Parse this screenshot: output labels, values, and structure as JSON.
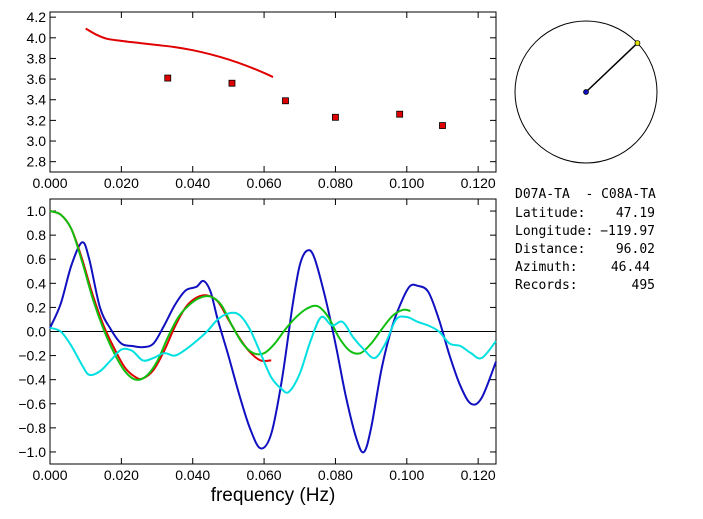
{
  "station_pair": "D07A-TA  - C08A-TA",
  "info": [
    {
      "label": "Latitude:",
      "value": "47.19"
    },
    {
      "label": "Longitude:",
      "value": "-119.97"
    },
    {
      "label": "Distance:",
      "value": "96.02"
    },
    {
      "label": "Azimuth:",
      "value": "46.44"
    },
    {
      "label": "Records:",
      "value": "495"
    }
  ],
  "azimuth_deg": 46.44,
  "chart_data": [
    {
      "type": "scatter",
      "xlim": [
        0.0,
        0.125
      ],
      "ylim": [
        2.7,
        4.25
      ],
      "x_ticks": [
        "0.000",
        "0.020",
        "0.040",
        "0.060",
        "0.080",
        "0.100",
        "0.120"
      ],
      "y_ticks": [
        "2.8",
        "3.0",
        "3.2",
        "3.4",
        "3.6",
        "3.8",
        "4.0",
        "4.2"
      ],
      "series": [
        {
          "kind": "line",
          "color": "#e00000",
          "x": [
            0.01,
            0.013,
            0.016,
            0.02,
            0.025,
            0.03,
            0.035,
            0.04,
            0.045,
            0.05,
            0.055,
            0.06,
            0.0625
          ],
          "y": [
            4.09,
            4.03,
            3.99,
            3.97,
            3.95,
            3.93,
            3.91,
            3.88,
            3.84,
            3.79,
            3.73,
            3.66,
            3.62
          ]
        },
        {
          "kind": "points",
          "color": "#e00000",
          "x": [
            0.033,
            0.051,
            0.066,
            0.08,
            0.098,
            0.11
          ],
          "y": [
            3.61,
            3.56,
            3.39,
            3.23,
            3.26,
            3.15
          ]
        }
      ]
    },
    {
      "type": "line",
      "xlabel": "frequency  (Hz)",
      "xlim": [
        0.0,
        0.125
      ],
      "ylim": [
        -1.1,
        1.1
      ],
      "x_ticks": [
        "0.000",
        "0.020",
        "0.040",
        "0.060",
        "0.080",
        "0.100",
        "0.120"
      ],
      "y_ticks": [
        "-1.0",
        "-0.8",
        "-0.6",
        "-0.4",
        "-0.2",
        "0.0",
        "0.2",
        "0.4",
        "0.6",
        "0.8",
        "1.0"
      ],
      "zero_line": true,
      "series": [
        {
          "color": "#1010c0",
          "x": [
            0,
            0.003,
            0.006,
            0.009,
            0.011,
            0.014,
            0.017,
            0.02,
            0.023,
            0.026,
            0.029,
            0.032,
            0.035,
            0.038,
            0.041,
            0.043,
            0.045,
            0.047,
            0.05,
            0.053,
            0.056,
            0.059,
            0.062,
            0.065,
            0.068,
            0.07,
            0.072,
            0.074,
            0.077,
            0.08,
            0.083,
            0.086,
            0.088,
            0.09,
            0.093,
            0.096,
            0.099,
            0.101,
            0.103,
            0.106,
            0.109,
            0.112,
            0.115,
            0.118,
            0.121,
            0.125
          ],
          "y": [
            0.03,
            0.23,
            0.55,
            0.74,
            0.6,
            0.2,
            0.02,
            -0.1,
            -0.12,
            -0.13,
            -0.1,
            0.05,
            0.22,
            0.34,
            0.37,
            0.42,
            0.33,
            0.1,
            -0.2,
            -0.52,
            -0.8,
            -0.97,
            -0.85,
            -0.4,
            0.22,
            0.55,
            0.67,
            0.62,
            0.3,
            -0.1,
            -0.55,
            -0.9,
            -1.0,
            -0.8,
            -0.3,
            0.05,
            0.28,
            0.38,
            0.38,
            0.33,
            0.1,
            -0.2,
            -0.45,
            -0.6,
            -0.55,
            -0.25
          ]
        },
        {
          "color": "#e00000",
          "x": [
            0,
            0.003,
            0.006,
            0.009,
            0.012,
            0.015,
            0.018,
            0.021,
            0.024,
            0.026,
            0.029,
            0.032,
            0.035,
            0.038,
            0.041,
            0.044,
            0.047,
            0.05,
            0.053,
            0.056,
            0.059,
            0.062
          ],
          "y": [
            1.0,
            0.97,
            0.85,
            0.6,
            0.3,
            0.05,
            -0.14,
            -0.3,
            -0.38,
            -0.39,
            -0.32,
            -0.16,
            0.04,
            0.2,
            0.28,
            0.3,
            0.25,
            0.1,
            -0.05,
            -0.17,
            -0.24,
            -0.24
          ]
        },
        {
          "color": "#10c010",
          "x": [
            0,
            0.003,
            0.006,
            0.009,
            0.012,
            0.015,
            0.018,
            0.021,
            0.024,
            0.027,
            0.03,
            0.033,
            0.036,
            0.039,
            0.042,
            0.045,
            0.048,
            0.051,
            0.054,
            0.057,
            0.06,
            0.063,
            0.066,
            0.069,
            0.072,
            0.075,
            0.078,
            0.081,
            0.084,
            0.087,
            0.09,
            0.093,
            0.096,
            0.099,
            0.101
          ],
          "y": [
            1.0,
            0.97,
            0.85,
            0.58,
            0.27,
            0.02,
            -0.18,
            -0.33,
            -0.4,
            -0.37,
            -0.25,
            -0.05,
            0.12,
            0.22,
            0.28,
            0.29,
            0.22,
            0.05,
            -0.1,
            -0.18,
            -0.18,
            -0.1,
            0.02,
            0.12,
            0.19,
            0.21,
            0.12,
            -0.05,
            -0.16,
            -0.18,
            -0.1,
            0.02,
            0.13,
            0.18,
            0.17
          ]
        },
        {
          "color": "#00e0e0",
          "x": [
            0,
            0.003,
            0.006,
            0.009,
            0.011,
            0.014,
            0.017,
            0.02,
            0.023,
            0.026,
            0.029,
            0.032,
            0.035,
            0.038,
            0.041,
            0.044,
            0.047,
            0.05,
            0.053,
            0.056,
            0.059,
            0.062,
            0.065,
            0.067,
            0.07,
            0.073,
            0.076,
            0.079,
            0.082,
            0.085,
            0.088,
            0.091,
            0.094,
            0.097,
            0.1,
            0.103,
            0.106,
            0.109,
            0.112,
            0.115,
            0.118,
            0.121,
            0.125
          ],
          "y": [
            0.03,
            0.0,
            -0.12,
            -0.28,
            -0.36,
            -0.33,
            -0.24,
            -0.15,
            -0.16,
            -0.24,
            -0.22,
            -0.18,
            -0.2,
            -0.15,
            -0.08,
            0.0,
            0.1,
            0.15,
            0.14,
            0.02,
            -0.18,
            -0.38,
            -0.48,
            -0.5,
            -0.35,
            -0.08,
            0.12,
            0.05,
            0.08,
            -0.05,
            -0.15,
            -0.22,
            -0.1,
            0.1,
            0.12,
            0.08,
            0.05,
            0.0,
            -0.1,
            -0.12,
            -0.18,
            -0.22,
            -0.08
          ]
        }
      ]
    }
  ]
}
